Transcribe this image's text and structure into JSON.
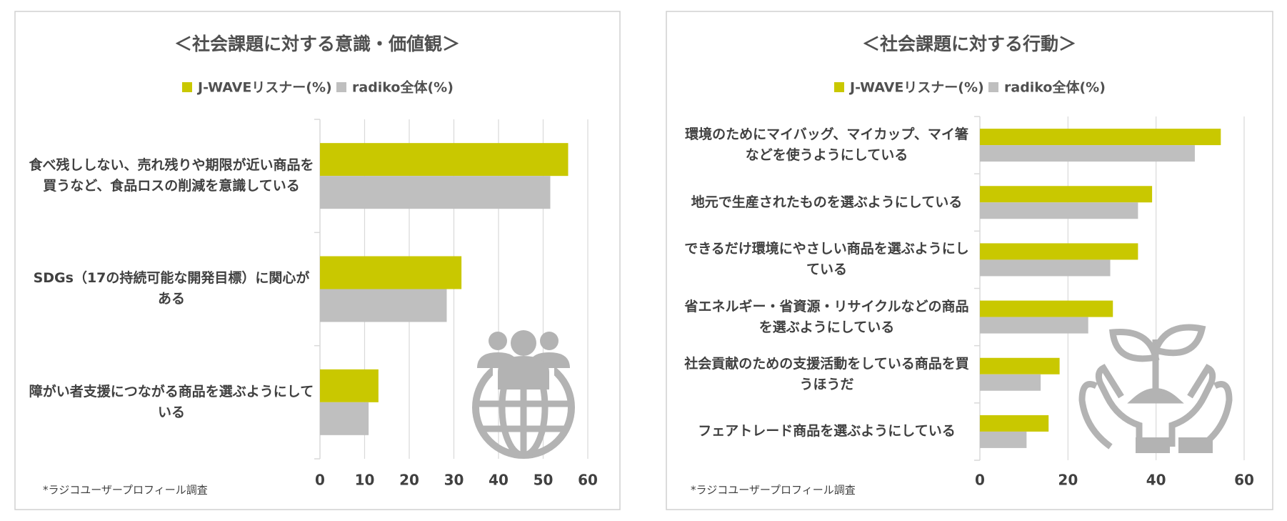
{
  "chart_data": [
    {
      "type": "bar",
      "orientation": "horizontal",
      "title": "＜社会課題に対する意識・価値観＞",
      "categories": [
        "食べ残ししない、売れ残りや期限が近い商品を買うなど、食品ロスの削減を意識している",
        "SDGs（17の持続可能な開発目標）に関心がある",
        "障がい者支援につながる商品を選ぶようにしている"
      ],
      "series": [
        {
          "name": "J-WAVEリスナー(%)",
          "color": "#c9c800",
          "values": [
            55.6,
            31.7,
            13.1
          ]
        },
        {
          "name": "radiko全体(%)",
          "color": "#bfbfbf",
          "values": [
            51.6,
            28.4,
            10.9
          ]
        }
      ],
      "xlim": [
        0,
        60
      ],
      "xticks": [
        0,
        10,
        20,
        30,
        40,
        50,
        60
      ],
      "grid": true,
      "footnote": "*ラジコユーザープロフィール調査"
    },
    {
      "type": "bar",
      "orientation": "horizontal",
      "title": "＜社会課題に対する行動＞",
      "categories": [
        "環境のためにマイバッグ、マイカップ、マイ箸などを使うようにしている",
        "地元で生産されたものを選ぶようにしている",
        "できるだけ環境にやさしい商品を選ぶようにしている",
        "省エネルギー・省資源・リサイクルなどの商品を選ぶようにしている",
        "社会貢献のための支援活動をしている商品を買うほうだ",
        "フェアトレード商品を選ぶようにしている"
      ],
      "series": [
        {
          "name": "J-WAVEリスナー(%)",
          "color": "#c9c800",
          "values": [
            54.7,
            39.1,
            35.9,
            30.2,
            18.1,
            15.6
          ]
        },
        {
          "name": "radiko全体(%)",
          "color": "#bfbfbf",
          "values": [
            48.8,
            35.9,
            29.6,
            24.6,
            13.8,
            10.6
          ]
        }
      ],
      "xlim": [
        0,
        60
      ],
      "xticks": [
        0,
        20,
        40,
        60
      ],
      "grid": true,
      "footnote": "*ラジコユーザープロフィール調査"
    }
  ]
}
